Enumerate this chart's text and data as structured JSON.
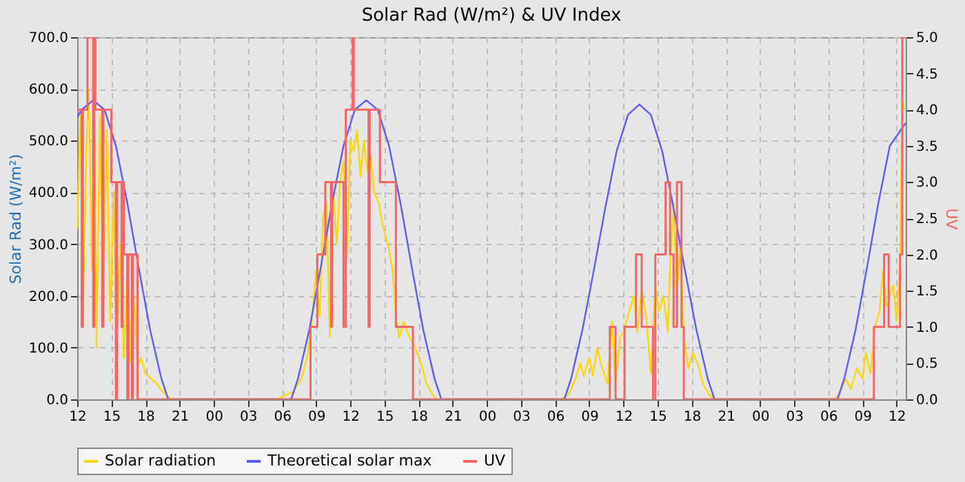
{
  "chart_data": {
    "type": "line",
    "title": "Solar Rad (W/m²) &  UV Index",
    "ylabel": "Solar Rad (W/m²)",
    "y2label": "UV",
    "xlim": [
      12,
      84.8
    ],
    "xticks": [
      {
        "value": 12,
        "label": "12"
      },
      {
        "value": 15,
        "label": "15"
      },
      {
        "value": 18,
        "label": "18"
      },
      {
        "value": 21,
        "label": "21"
      },
      {
        "value": 24,
        "label": "00"
      },
      {
        "value": 27,
        "label": "03"
      },
      {
        "value": 30,
        "label": "06"
      },
      {
        "value": 33,
        "label": "09"
      },
      {
        "value": 36,
        "label": "12"
      },
      {
        "value": 39,
        "label": "15"
      },
      {
        "value": 42,
        "label": "18"
      },
      {
        "value": 45,
        "label": "21"
      },
      {
        "value": 48,
        "label": "00"
      },
      {
        "value": 51,
        "label": "03"
      },
      {
        "value": 54,
        "label": "06"
      },
      {
        "value": 57,
        "label": "09"
      },
      {
        "value": 60,
        "label": "12"
      },
      {
        "value": 63,
        "label": "15"
      },
      {
        "value": 66,
        "label": "18"
      },
      {
        "value": 69,
        "label": "21"
      },
      {
        "value": 72,
        "label": "00"
      },
      {
        "value": 75,
        "label": "03"
      },
      {
        "value": 78,
        "label": "06"
      },
      {
        "value": 81,
        "label": "09"
      },
      {
        "value": 84,
        "label": "12"
      }
    ],
    "ylim": [
      0,
      700
    ],
    "yticks": [
      {
        "value": 0,
        "label": "0.0"
      },
      {
        "value": 100,
        "label": "100.0"
      },
      {
        "value": 200,
        "label": "200.0"
      },
      {
        "value": 300,
        "label": "300.0"
      },
      {
        "value": 400,
        "label": "400.0"
      },
      {
        "value": 500,
        "label": "500.0"
      },
      {
        "value": 600,
        "label": "600.0"
      },
      {
        "value": 700,
        "label": "700.0"
      }
    ],
    "y2lim": [
      0,
      5
    ],
    "y2ticks": [
      {
        "value": 0,
        "label": "0.0"
      },
      0.5,
      {
        "value": 1,
        "label": "1.0"
      },
      1.5,
      {
        "value": 2,
        "label": "2.0"
      },
      2.5,
      {
        "value": 3,
        "label": "3.0"
      },
      3.5,
      {
        "value": 4,
        "label": "4.0"
      },
      4.5,
      {
        "value": 5,
        "label": "5.0"
      }
    ],
    "grid": true,
    "legend": "bottom",
    "marker": "none",
    "line_style": "solid",
    "series": [
      {
        "name": "Solar radiation",
        "color": "#ffd700",
        "x": [
          12.0,
          12.3,
          12.5,
          12.8,
          13.0,
          13.3,
          13.5,
          13.7,
          14.0,
          14.3,
          14.6,
          14.9,
          15.2,
          15.5,
          15.8,
          16.1,
          16.4,
          16.7,
          17.0,
          17.3,
          17.6,
          18.0,
          18.5,
          19.0,
          19.5,
          20.0,
          20.3,
          29.5,
          30.0,
          31.0,
          31.7,
          32.2,
          32.6,
          33.0,
          33.3,
          33.6,
          33.9,
          34.2,
          34.5,
          34.8,
          35.1,
          35.4,
          35.7,
          36.0,
          36.3,
          36.6,
          36.9,
          37.2,
          37.5,
          37.8,
          38.1,
          38.5,
          38.9,
          39.3,
          39.7,
          40.0,
          40.3,
          40.7,
          41.2,
          41.7,
          42.2,
          42.7,
          43.2,
          43.6,
          54.5,
          55.2,
          55.8,
          56.2,
          56.5,
          57.0,
          57.3,
          57.7,
          58.0,
          58.6,
          59.0,
          59.3,
          59.7,
          60.0,
          60.5,
          60.9,
          61.2,
          61.6,
          62.0,
          62.4,
          62.8,
          63.1,
          63.5,
          63.9,
          64.1,
          64.4,
          64.7,
          65.0,
          65.3,
          65.7,
          66.1,
          66.5,
          67.0,
          67.5,
          68.0,
          78.5,
          79.0,
          79.5,
          80.0,
          80.5,
          81.0,
          81.3,
          81.7,
          82.1,
          82.5,
          82.8,
          83.1,
          83.4,
          83.7,
          84.0,
          84.3,
          84.5,
          84.7
        ],
        "values": [
          330,
          560,
          150,
          480,
          600,
          250,
          580,
          100,
          550,
          200,
          520,
          150,
          400,
          100,
          300,
          80,
          250,
          70,
          200,
          60,
          80,
          50,
          40,
          30,
          15,
          5,
          0,
          0,
          5,
          15,
          40,
          80,
          150,
          250,
          160,
          350,
          380,
          120,
          400,
          300,
          420,
          460,
          280,
          500,
          480,
          520,
          430,
          500,
          440,
          470,
          400,
          380,
          330,
          300,
          250,
          160,
          120,
          150,
          120,
          100,
          70,
          30,
          10,
          0,
          0,
          10,
          40,
          70,
          45,
          80,
          45,
          100,
          70,
          30,
          150,
          30,
          120,
          130,
          170,
          200,
          130,
          210,
          160,
          50,
          220,
          170,
          200,
          130,
          260,
          380,
          200,
          300,
          120,
          60,
          90,
          70,
          30,
          10,
          0,
          0,
          10,
          40,
          20,
          60,
          40,
          90,
          50,
          140,
          170,
          250,
          180,
          200,
          220,
          150,
          270,
          580,
          560
        ]
      },
      {
        "name": "Theoretical solar max",
        "color": "#5a5aff",
        "x": [
          12.0,
          12.4,
          13.4,
          14.4,
          15.4,
          16.4,
          17.4,
          18.4,
          19.4,
          20.0,
          30.8,
          31.4,
          32.4,
          33.4,
          34.4,
          35.4,
          36.4,
          37.4,
          38.4,
          39.4,
          40.4,
          41.4,
          42.4,
          43.4,
          44.0,
          54.8,
          55.4,
          56.4,
          57.4,
          58.4,
          59.4,
          60.4,
          61.4,
          62.4,
          63.4,
          64.4,
          65.4,
          66.4,
          67.4,
          68.0,
          78.8,
          79.4,
          80.4,
          81.4,
          82.4,
          83.4,
          84.8
        ],
        "values": [
          545,
          560,
          578,
          560,
          490,
          380,
          255,
          135,
          40,
          0,
          0,
          40,
          135,
          255,
          380,
          490,
          560,
          578,
          560,
          490,
          380,
          255,
          135,
          40,
          0,
          0,
          40,
          135,
          250,
          370,
          480,
          550,
          570,
          550,
          480,
          370,
          250,
          135,
          40,
          0,
          0,
          40,
          135,
          255,
          380,
          490,
          534
        ]
      },
      {
        "name": "UV",
        "color": "#f86464",
        "type": "step",
        "axis": "y2",
        "x": [
          12.0,
          12.4,
          12.5,
          12.9,
          13.4,
          13.5,
          13.6,
          14.2,
          14.3,
          15.0,
          15.4,
          15.5,
          15.9,
          16.0,
          16.1,
          16.4,
          16.5,
          16.8,
          16.9,
          17.3,
          32.5,
          33.1,
          33.8,
          34.3,
          34.4,
          35.4,
          35.6,
          36.2,
          36.3,
          37.6,
          37.7,
          38.6,
          40.0,
          41.5,
          58.8,
          59.3,
          60.1,
          61.1,
          61.6,
          62.6,
          62.8,
          63.7,
          64.1,
          64.4,
          64.7,
          65.1,
          65.3,
          82.0,
          82.9,
          83.3,
          84.3,
          84.5,
          84.8
        ],
        "values": [
          4,
          1,
          4,
          5,
          1,
          5,
          4,
          1,
          4,
          3,
          0,
          3,
          1,
          3,
          2,
          0,
          2,
          0,
          2,
          0,
          1,
          2,
          3,
          1,
          3,
          1,
          4,
          5,
          4,
          1,
          4,
          3,
          1,
          0,
          1,
          0,
          1,
          2,
          1,
          0,
          2,
          3,
          2,
          1,
          3,
          1,
          0,
          1,
          2,
          1,
          2,
          5,
          5
        ]
      }
    ]
  }
}
